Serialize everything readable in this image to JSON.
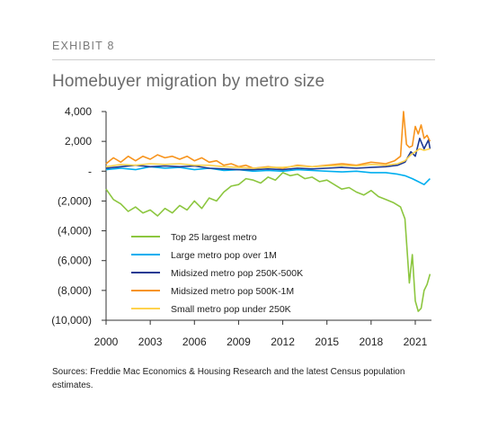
{
  "exhibit_label": "EXHIBIT 8",
  "title": "Homebuyer migration by metro size",
  "source_note": "Sources: Freddie Mac Economics & Housing Research and the latest Census population estimates.",
  "chart_data": {
    "type": "line",
    "title": "Homebuyer migration by metro size",
    "xlabel": "",
    "ylabel": "",
    "xlim": [
      2000.0,
      2022.1
    ],
    "ylim": [
      -10000,
      4000
    ],
    "x_ticks": [
      2000,
      2003,
      2006,
      2009,
      2012,
      2015,
      2018,
      2021
    ],
    "y_ticks": [
      {
        "value": 4000,
        "label": "4,000"
      },
      {
        "value": 2000,
        "label": "2,000"
      },
      {
        "value": 0,
        "label": "-"
      },
      {
        "value": -2000,
        "label": "(2,000)"
      },
      {
        "value": -4000,
        "label": "(4,000)"
      },
      {
        "value": -6000,
        "label": "(6,000)"
      },
      {
        "value": -8000,
        "label": "(8,000)"
      },
      {
        "value": -10000,
        "label": "(10,000)"
      }
    ],
    "grid": false,
    "legend_position": "bottom-center",
    "series": [
      {
        "name": "Top 25 largest metro",
        "color": "#8cc63f",
        "x": [
          2000.0,
          2000.5,
          2001.0,
          2001.5,
          2002.0,
          2002.5,
          2003.0,
          2003.5,
          2004.0,
          2004.5,
          2005.0,
          2005.5,
          2006.0,
          2006.5,
          2007.0,
          2007.5,
          2008.0,
          2008.5,
          2009.0,
          2009.5,
          2010.0,
          2010.5,
          2011.0,
          2011.5,
          2012.0,
          2012.5,
          2013.0,
          2013.5,
          2014.0,
          2014.5,
          2015.0,
          2015.5,
          2016.0,
          2016.5,
          2017.0,
          2017.5,
          2018.0,
          2018.5,
          2019.0,
          2019.5,
          2020.0,
          2020.3,
          2020.6,
          2020.8,
          2021.0,
          2021.2,
          2021.4,
          2021.6,
          2021.8,
          2022.0
        ],
        "y": [
          -1200,
          -1900,
          -2200,
          -2700,
          -2400,
          -2800,
          -2600,
          -3000,
          -2500,
          -2800,
          -2300,
          -2600,
          -2000,
          -2500,
          -1800,
          -2000,
          -1400,
          -1000,
          -900,
          -500,
          -600,
          -800,
          -400,
          -600,
          -100,
          -300,
          -200,
          -500,
          -400,
          -700,
          -600,
          -900,
          -1200,
          -1100,
          -1400,
          -1600,
          -1300,
          -1700,
          -1900,
          -2100,
          -2400,
          -3200,
          -7500,
          -5600,
          -8700,
          -9400,
          -9200,
          -8000,
          -7600,
          -6900
        ]
      },
      {
        "name": "Large metro pop over 1M",
        "color": "#00aeef",
        "x": [
          2000.0,
          2001.0,
          2002.0,
          2003.0,
          2004.0,
          2005.0,
          2006.0,
          2007.0,
          2008.0,
          2009.0,
          2010.0,
          2011.0,
          2012.0,
          2013.0,
          2014.0,
          2015.0,
          2016.0,
          2017.0,
          2018.0,
          2019.0,
          2019.8,
          2020.3,
          2020.8,
          2021.2,
          2021.6,
          2022.0
        ],
        "y": [
          100,
          200,
          100,
          300,
          200,
          250,
          100,
          200,
          50,
          100,
          0,
          50,
          0,
          100,
          50,
          0,
          -50,
          0,
          -100,
          -100,
          -200,
          -300,
          -500,
          -700,
          -900,
          -500
        ]
      },
      {
        "name": "Midsized metro pop 250K-500K",
        "color": "#1f3a93",
        "x": [
          2000.0,
          2001.0,
          2002.0,
          2003.0,
          2004.0,
          2005.0,
          2006.0,
          2007.0,
          2008.0,
          2009.0,
          2010.0,
          2011.0,
          2012.0,
          2013.0,
          2014.0,
          2015.0,
          2016.0,
          2017.0,
          2018.0,
          2019.0,
          2019.8,
          2020.3,
          2020.7,
          2021.0,
          2021.3,
          2021.6,
          2021.9,
          2022.0
        ],
        "y": [
          200,
          300,
          400,
          300,
          350,
          300,
          350,
          200,
          150,
          100,
          100,
          150,
          100,
          200,
          150,
          200,
          250,
          200,
          250,
          300,
          400,
          600,
          1300,
          1000,
          2200,
          1500,
          2100,
          1500
        ]
      },
      {
        "name": "Midsized metro pop 500K-1M",
        "color": "#f7941d",
        "x": [
          2000.0,
          2000.5,
          2001.0,
          2001.5,
          2002.0,
          2002.5,
          2003.0,
          2003.5,
          2004.0,
          2004.5,
          2005.0,
          2005.5,
          2006.0,
          2006.5,
          2007.0,
          2007.5,
          2008.0,
          2008.5,
          2009.0,
          2009.5,
          2010.0,
          2011.0,
          2012.0,
          2013.0,
          2014.0,
          2015.0,
          2016.0,
          2017.0,
          2018.0,
          2019.0,
          2019.6,
          2020.0,
          2020.2,
          2020.4,
          2020.6,
          2020.8,
          2021.0,
          2021.2,
          2021.4,
          2021.6,
          2021.8,
          2022.0
        ],
        "y": [
          500,
          900,
          600,
          1000,
          700,
          1000,
          800,
          1100,
          900,
          1000,
          800,
          1000,
          700,
          900,
          600,
          700,
          400,
          500,
          300,
          400,
          200,
          300,
          200,
          400,
          300,
          400,
          500,
          400,
          600,
          500,
          700,
          1000,
          4000,
          1800,
          1600,
          1700,
          3000,
          2500,
          3100,
          2200,
          2400,
          2000
        ]
      },
      {
        "name": "Small metro pop under 250K",
        "color": "#ffd24d",
        "x": [
          2000.0,
          2001.0,
          2002.0,
          2003.0,
          2004.0,
          2005.0,
          2006.0,
          2007.0,
          2008.0,
          2009.0,
          2010.0,
          2011.0,
          2012.0,
          2013.0,
          2014.0,
          2015.0,
          2016.0,
          2017.0,
          2018.0,
          2019.0,
          2019.8,
          2020.3,
          2020.7,
          2021.0,
          2021.3,
          2021.6,
          2022.0
        ],
        "y": [
          300,
          450,
          400,
          500,
          450,
          500,
          400,
          400,
          300,
          250,
          200,
          250,
          250,
          350,
          300,
          350,
          400,
          350,
          450,
          400,
          500,
          700,
          1100,
          1300,
          1500,
          1400,
          1500
        ]
      }
    ]
  }
}
